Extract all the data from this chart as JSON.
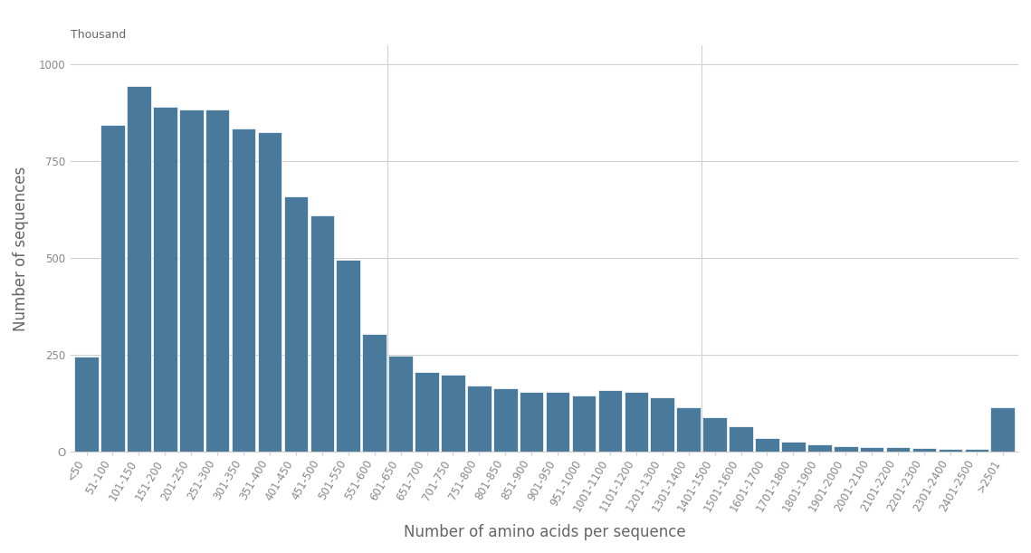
{
  "categories": [
    "<50",
    "51-100",
    "101-150",
    "151-200",
    "201-250",
    "251-300",
    "301-350",
    "351-400",
    "401-450",
    "451-500",
    "501-550",
    "551-600",
    "601-650",
    "651-700",
    "701-750",
    "751-800",
    "801-850",
    "851-900",
    "901-950",
    "951-1000",
    "1001-1100",
    "1101-1200",
    "1201-1300",
    "1301-1400",
    "1401-1500",
    "1501-1600",
    "1601-1700",
    "1701-1800",
    "1801-1900",
    "1901-2000",
    "2001-2100",
    "2101-2200",
    "2201-2300",
    "2301-2400",
    "2401-2500",
    ">2501"
  ],
  "values": [
    245,
    845,
    945,
    890,
    885,
    885,
    835,
    825,
    660,
    610,
    495,
    305,
    248,
    205,
    200,
    170,
    165,
    155,
    155,
    145,
    160,
    155,
    140,
    115,
    90,
    65,
    35,
    25,
    18,
    15,
    13,
    12,
    10,
    8,
    7,
    115
  ],
  "bar_color": "#4a7a9b",
  "xlabel": "Number of amino acids per sequence",
  "ylabel": "Number of sequences",
  "ylabel_unit": "Thousand",
  "ylim": [
    0,
    1050
  ],
  "yticks": [
    0,
    250,
    500,
    750,
    1000
  ],
  "background_color": "#ffffff",
  "grid_color": "#d0d0d0",
  "tick_label_fontsize": 8.5,
  "axis_label_fontsize": 12,
  "tick_color": "#aaaaaa"
}
